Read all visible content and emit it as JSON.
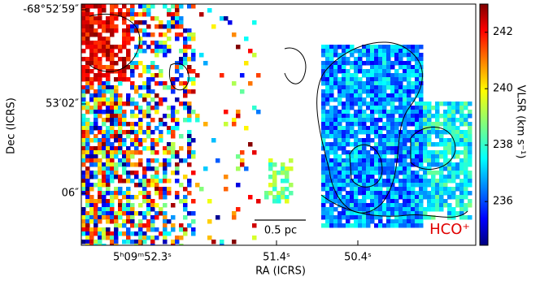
{
  "chart_data": {
    "type": "image",
    "xlabel": "RA (ICRS)",
    "ylabel": "Dec (ICRS)",
    "xtick_labels": [
      "5ʰ09ᵐ52.3ˢ",
      "51.4ˢ",
      "50.4ˢ"
    ],
    "ytick_labels": [
      "-68°52′59″",
      "53′02″",
      "06″"
    ],
    "colorbar": {
      "label": "VLSR (km s⁻¹)",
      "lim": [
        234.45,
        243.0
      ],
      "ticks": [
        236,
        238,
        240,
        242
      ],
      "colormap": "jet"
    },
    "annotations": [
      "0.5 pc",
      "HCO⁺"
    ]
  }
}
